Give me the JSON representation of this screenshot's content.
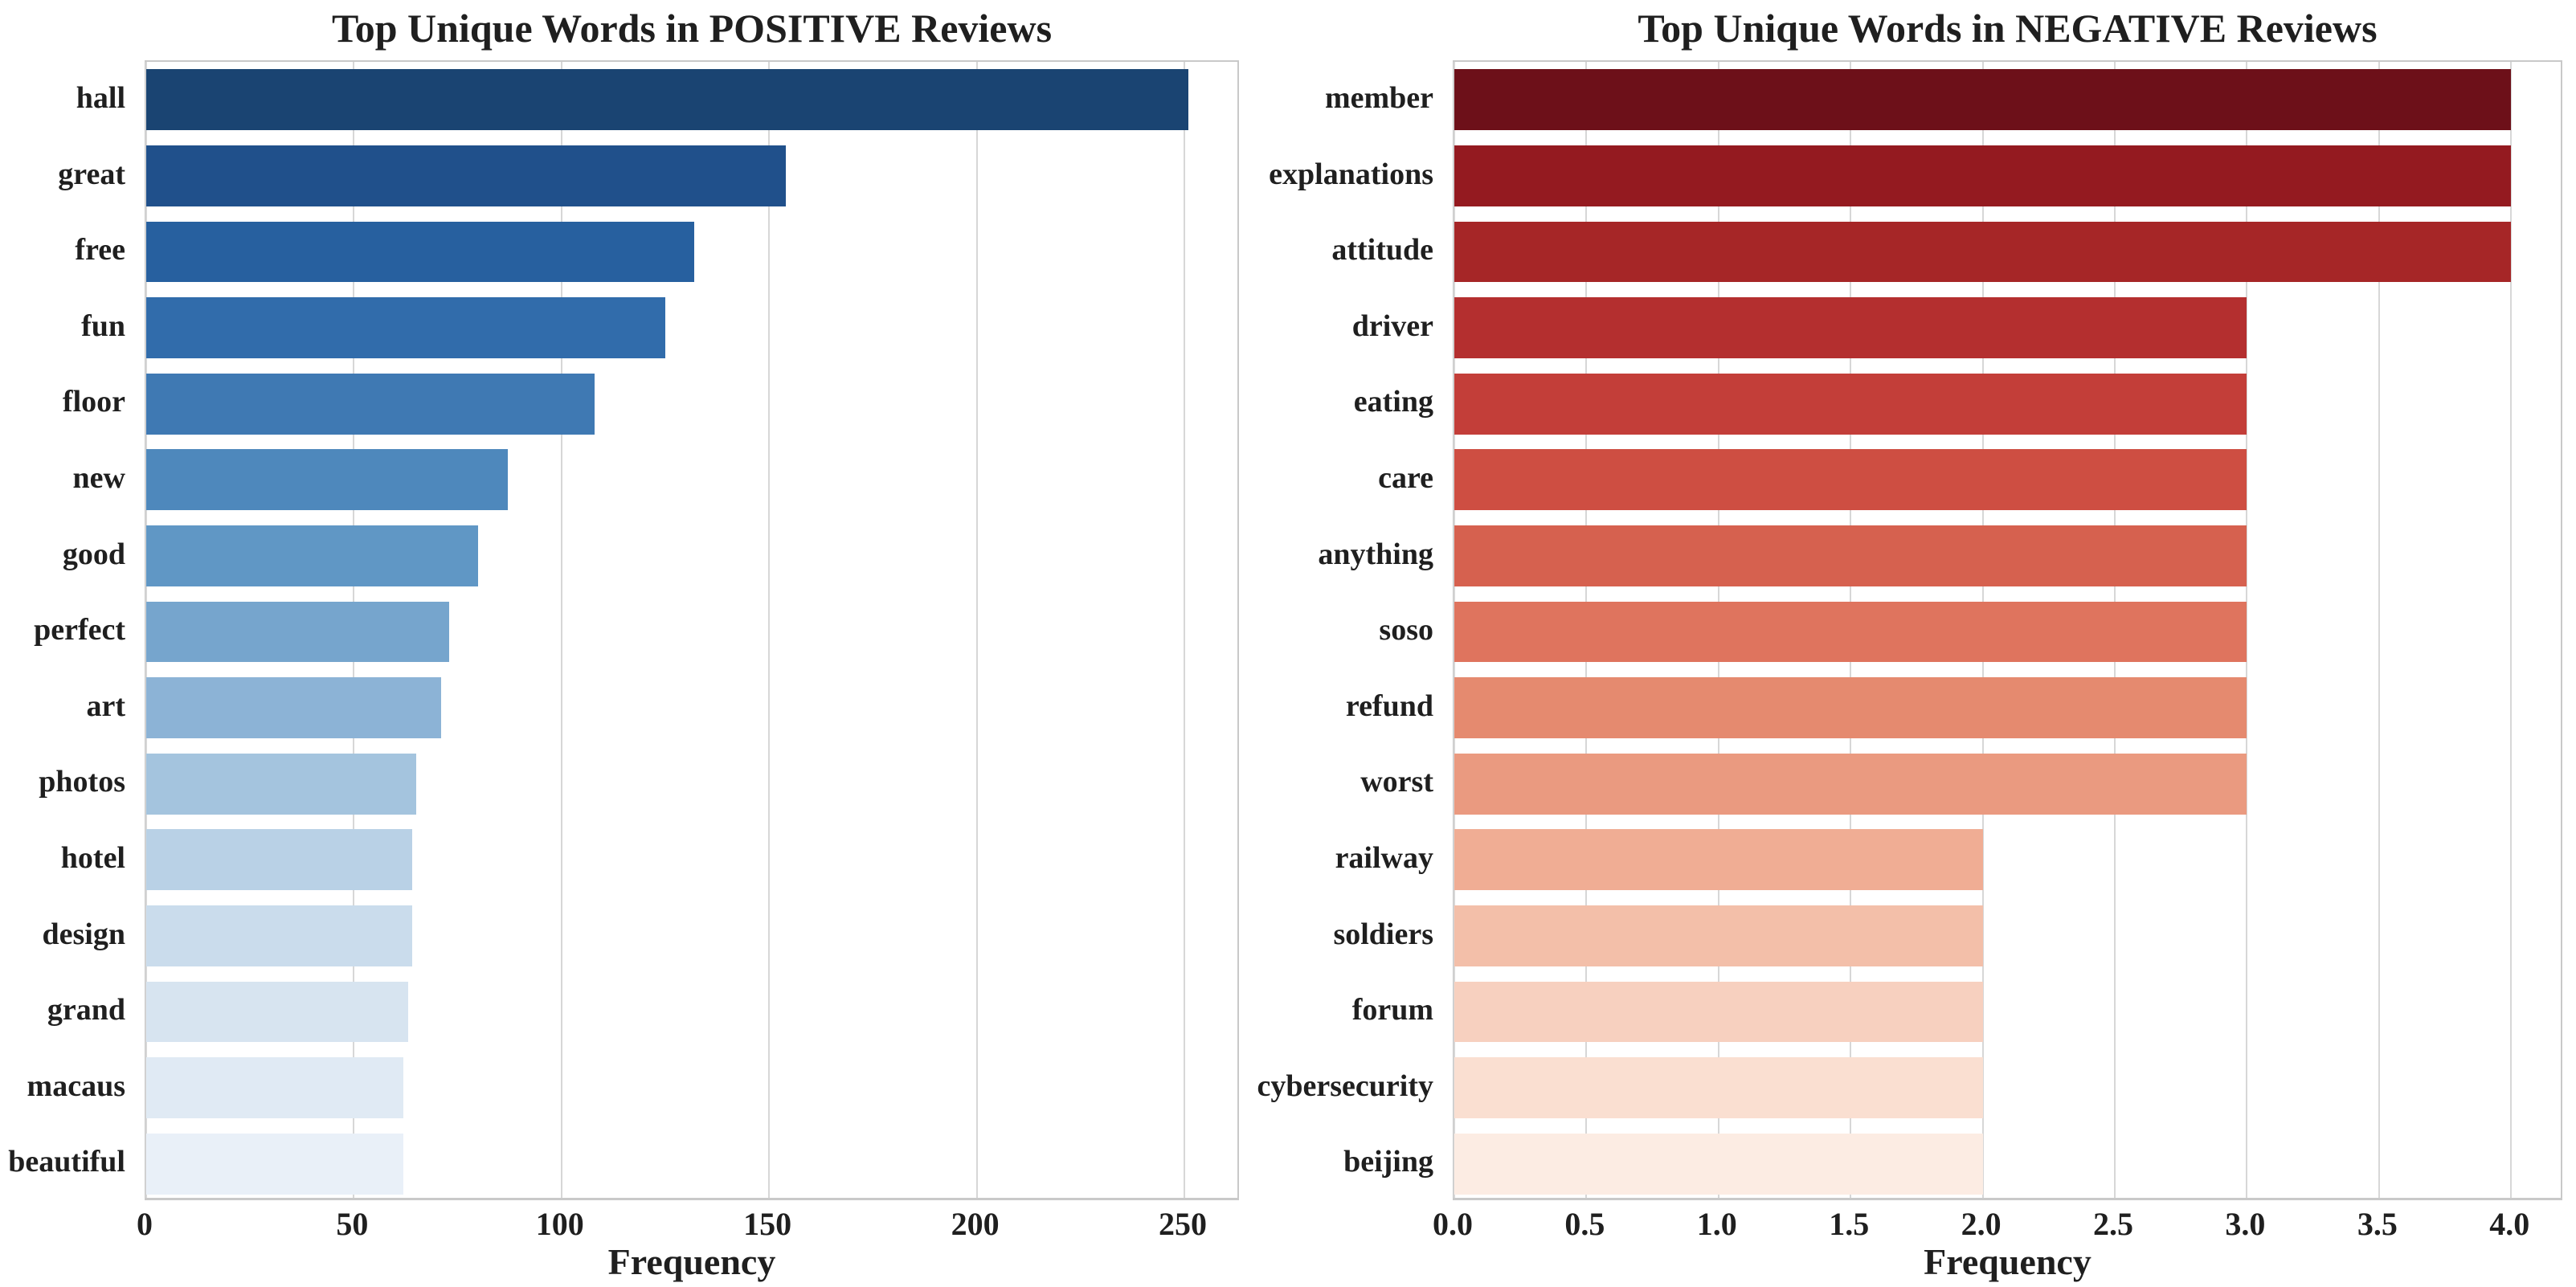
{
  "style": {
    "background": "#ffffff",
    "text_color": "#1f1f1f",
    "grid_color": "#d7d7d7",
    "spine_color": "#c9c9c9"
  },
  "chart_data": [
    {
      "type": "bar",
      "orientation": "horizontal",
      "title": "Top Unique Words in POSITIVE Reviews",
      "xlabel": "Frequency",
      "grid": "vertical",
      "legend": "none",
      "categories": [
        "hall",
        "great",
        "free",
        "fun",
        "floor",
        "new",
        "good",
        "perfect",
        "art",
        "photos",
        "hotel",
        "design",
        "grand",
        "macaus",
        "beautiful"
      ],
      "values": [
        251,
        154,
        132,
        125,
        108,
        87,
        80,
        73,
        71,
        65,
        64,
        64,
        63,
        62,
        62
      ],
      "xlim": [
        0,
        263.55
      ],
      "xticks": [
        0,
        50,
        100,
        150,
        200,
        250
      ],
      "xtick_labels": [
        "0",
        "50",
        "100",
        "150",
        "200",
        "250"
      ],
      "palette": [
        "#1a4472",
        "#20508b",
        "#27609f",
        "#316cab",
        "#3f79b3",
        "#4e88bc",
        "#6097c5",
        "#76a5cd",
        "#8cb3d6",
        "#a4c4de",
        "#b9d1e6",
        "#cadcec",
        "#d7e4f0",
        "#e0eaf4",
        "#e9f0f8"
      ]
    },
    {
      "type": "bar",
      "orientation": "horizontal",
      "title": "Top Unique Words in NEGATIVE Reviews",
      "xlabel": "Frequency",
      "grid": "vertical",
      "legend": "none",
      "categories": [
        "member",
        "explanations",
        "attitude",
        "driver",
        "eating",
        "care",
        "anything",
        "soso",
        "refund",
        "worst",
        "railway",
        "soldiers",
        "forum",
        "cybersecurity",
        "beijing"
      ],
      "values": [
        4,
        4,
        4,
        3,
        3,
        3,
        3,
        3,
        3,
        3,
        2,
        2,
        2,
        2,
        2
      ],
      "xlim": [
        0,
        4.2
      ],
      "xticks": [
        0,
        0.5,
        1,
        1.5,
        2,
        2.5,
        3,
        3.5,
        4
      ],
      "xtick_labels": [
        "0.0",
        "0.5",
        "1.0",
        "1.5",
        "2.0",
        "2.5",
        "3.0",
        "3.5",
        "4.0"
      ],
      "palette": [
        "#6d1019",
        "#941a20",
        "#a62627",
        "#b42f2f",
        "#c33e39",
        "#ce4e42",
        "#d6614f",
        "#df745e",
        "#e58a6f",
        "#ea9a80",
        "#f0ad94",
        "#f3bfa9",
        "#f7d0bf",
        "#fadfd1",
        "#fcece3"
      ]
    }
  ]
}
